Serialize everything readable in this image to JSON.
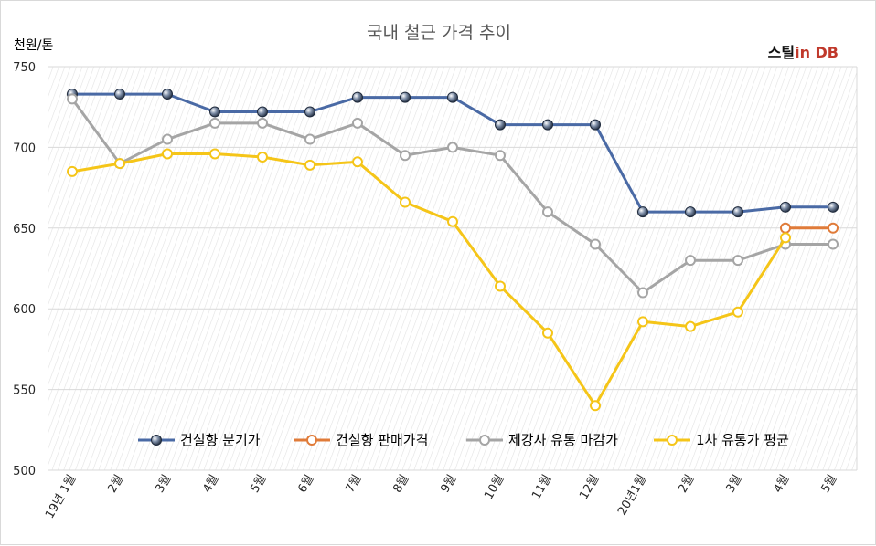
{
  "chart_data": {
    "type": "line",
    "title": "국내 철근 가격 추이",
    "ylabel": "천원/톤",
    "ylim": [
      500,
      750
    ],
    "yticks": [
      500,
      550,
      600,
      650,
      700,
      750
    ],
    "categories": [
      "19년 1월",
      "2월",
      "3월",
      "4월",
      "5월",
      "6월",
      "7월",
      "8월",
      "9월",
      "10월",
      "11월",
      "12월",
      "20년1월",
      "2월",
      "3월",
      "4월",
      "5월"
    ],
    "grid": "vertical-hatched",
    "legend_position": "bottom-inside",
    "series": [
      {
        "name": "건설향 분기가",
        "color": "#4a6aa5",
        "marker": "filled-sphere",
        "values": [
          733,
          733,
          733,
          722,
          722,
          722,
          731,
          731,
          731,
          714,
          714,
          714,
          660,
          660,
          660,
          663,
          663
        ]
      },
      {
        "name": "건설향 판매가격",
        "color": "#e07b39",
        "marker": "hollow-circle",
        "values": [
          null,
          null,
          null,
          null,
          null,
          null,
          null,
          null,
          null,
          null,
          null,
          null,
          null,
          null,
          null,
          650,
          650
        ]
      },
      {
        "name": "제강사 유통 마감가",
        "color": "#a5a5a5",
        "marker": "hollow-circle",
        "values": [
          730,
          690,
          705,
          715,
          715,
          705,
          715,
          695,
          700,
          695,
          660,
          640,
          610,
          630,
          630,
          640,
          640
        ]
      },
      {
        "name": "1차 유통가 평균",
        "color": "#f5c518",
        "marker": "hollow-circle",
        "values": [
          685,
          690,
          696,
          696,
          694,
          689,
          691,
          666,
          654,
          614,
          585,
          540,
          592,
          589,
          598,
          644,
          null
        ]
      }
    ]
  },
  "brand": {
    "part1": "스틸",
    "part2": "in DB"
  }
}
